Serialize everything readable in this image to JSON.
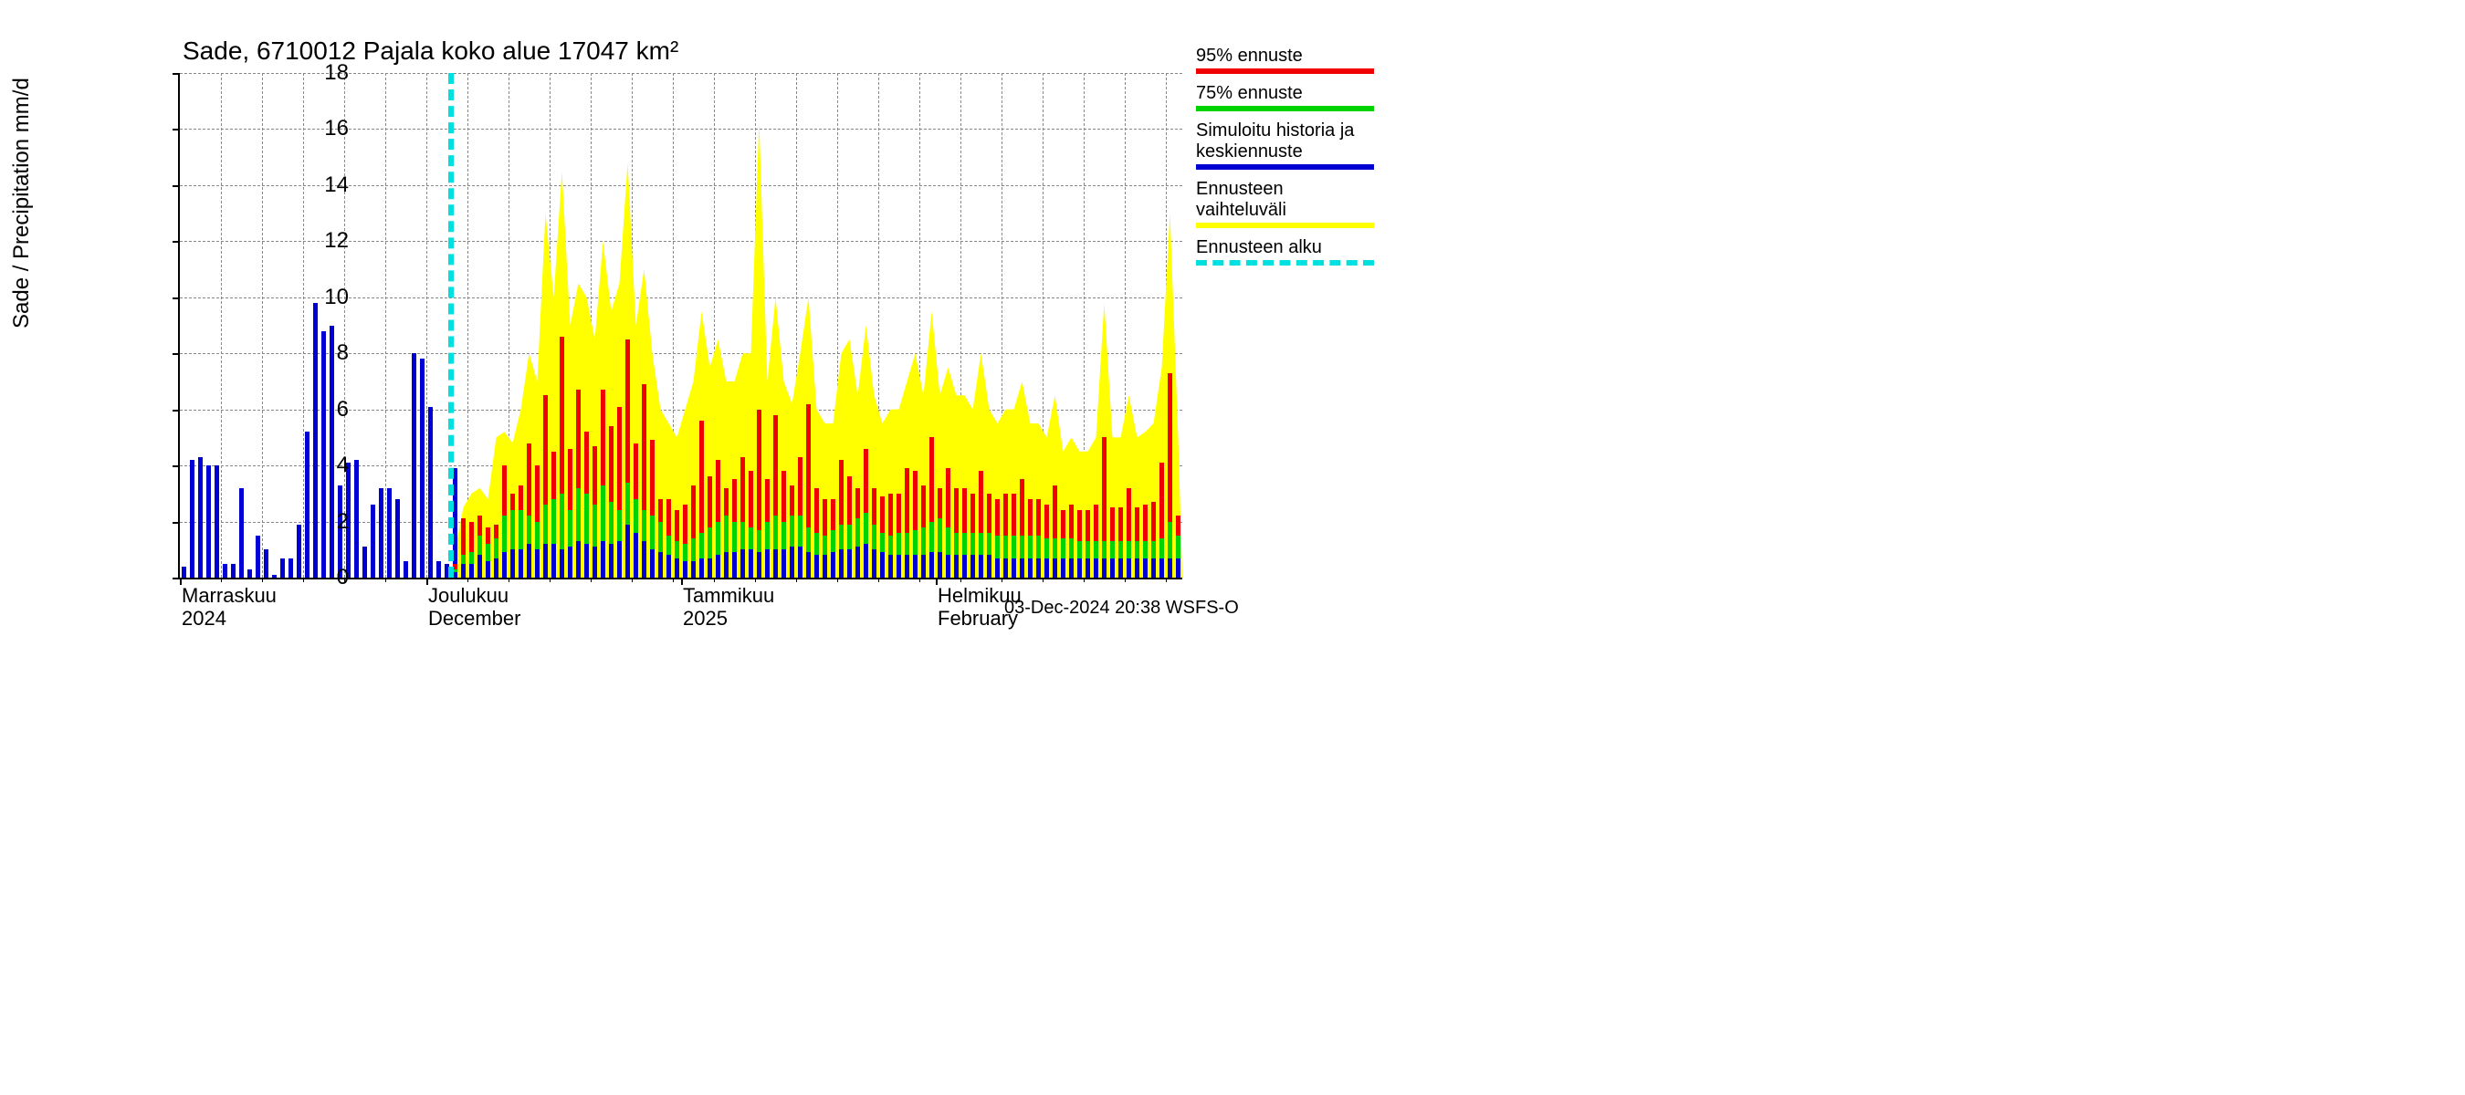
{
  "chart": {
    "title": "Sade, 6710012 Pajala koko alue 17047 km²",
    "ylabel": "Sade / Precipitation   mm/d",
    "footer": "03-Dec-2024 20:38 WSFS-O",
    "background_color": "#ffffff",
    "grid_color": "#888888",
    "axis_color": "#000000",
    "title_fontsize": 28,
    "label_fontsize": 24,
    "tick_fontsize": 24,
    "ylim": [
      0,
      18
    ],
    "ytick_step": 2,
    "yticks": [
      0,
      2,
      4,
      6,
      8,
      10,
      12,
      14,
      16,
      18
    ],
    "n_days": 122,
    "bar_relwidth": 0.55,
    "forecast_start_index": 33,
    "colors": {
      "history": "#0000d3",
      "p75": "#00d300",
      "p95": "#f00000",
      "range": "#ffff00",
      "forecast_line": "#00e0e0"
    },
    "x_major_ticks": [
      {
        "index": 0,
        "line1": "Marraskuu",
        "line2": "2024"
      },
      {
        "index": 30,
        "line1": "Joulukuu",
        "line2": "December"
      },
      {
        "index": 61,
        "line1": "Tammikuu",
        "line2": "2025"
      },
      {
        "index": 92,
        "line1": "Helmikuu",
        "line2": "February"
      }
    ],
    "x_minor_step": 5,
    "legend": [
      {
        "label": "95% ennuste",
        "color": "#f00000",
        "style": "solid"
      },
      {
        "label": "75% ennuste",
        "color": "#00d300",
        "style": "solid"
      },
      {
        "label": "Simuloitu historia ja\nkeskiennuste",
        "color": "#0000d3",
        "style": "solid"
      },
      {
        "label": "Ennusteen vaihteluväli",
        "color": "#ffff00",
        "style": "solid"
      },
      {
        "label": "Ennusteen alku",
        "color": "#00e0e0",
        "style": "dashed"
      }
    ],
    "history": [
      0.4,
      4.2,
      4.3,
      4.0,
      4.0,
      0.5,
      0.5,
      3.2,
      0.3,
      1.5,
      1.0,
      0.1,
      0.7,
      0.7,
      1.9,
      5.2,
      9.8,
      8.8,
      9.0,
      3.3,
      4.1,
      4.2,
      1.1,
      2.6,
      3.2,
      3.2,
      2.8,
      0.6,
      8.0,
      7.8,
      6.1,
      0.6,
      0.5,
      3.9,
      1.2,
      1.2
    ],
    "mean": [
      0.2,
      0.5,
      0.5,
      0.8,
      0.6,
      0.7,
      0.9,
      1.0,
      1.0,
      1.2,
      1.0,
      1.2,
      1.2,
      1.0,
      1.1,
      1.3,
      1.2,
      1.1,
      1.3,
      1.2,
      1.3,
      1.9,
      1.6,
      1.3,
      1.0,
      0.9,
      0.8,
      0.7,
      0.6,
      0.6,
      0.7,
      0.7,
      0.8,
      0.9,
      0.9,
      1.0,
      1.0,
      0.9,
      1.0,
      1.0,
      1.0,
      1.1,
      1.1,
      0.9,
      0.8,
      0.8,
      0.9,
      1.0,
      1.0,
      1.1,
      1.2,
      1.0,
      0.9,
      0.8,
      0.8,
      0.8,
      0.8,
      0.8,
      0.9,
      0.9,
      0.8,
      0.8,
      0.8,
      0.8,
      0.8,
      0.8,
      0.7,
      0.7,
      0.7,
      0.7,
      0.7,
      0.7,
      0.7,
      0.7,
      0.7,
      0.7,
      0.7,
      0.7,
      0.7,
      0.7,
      0.7,
      0.7,
      0.7,
      0.7,
      0.7,
      0.7,
      0.7,
      0.7,
      0.7
    ],
    "p75": [
      0.3,
      0.8,
      0.9,
      1.5,
      1.2,
      1.4,
      2.2,
      2.4,
      2.4,
      2.2,
      2.0,
      2.6,
      2.8,
      3.0,
      2.4,
      3.2,
      3.0,
      2.6,
      3.3,
      2.7,
      2.4,
      3.4,
      2.8,
      2.4,
      2.2,
      2.0,
      1.5,
      1.3,
      1.2,
      1.4,
      1.6,
      1.8,
      2.0,
      2.2,
      2.0,
      2.0,
      1.8,
      1.7,
      2.0,
      2.2,
      2.0,
      2.2,
      2.2,
      1.8,
      1.6,
      1.5,
      1.7,
      1.9,
      1.9,
      2.1,
      2.3,
      1.9,
      1.6,
      1.5,
      1.6,
      1.6,
      1.7,
      1.8,
      2.0,
      2.1,
      1.8,
      1.6,
      1.6,
      1.6,
      1.6,
      1.6,
      1.5,
      1.5,
      1.5,
      1.5,
      1.5,
      1.5,
      1.4,
      1.4,
      1.4,
      1.4,
      1.3,
      1.3,
      1.3,
      1.3,
      1.3,
      1.3,
      1.3,
      1.3,
      1.3,
      1.3,
      1.4,
      2.0,
      1.5
    ],
    "p95": [
      0.5,
      2.1,
      2.0,
      2.2,
      1.8,
      1.9,
      4.0,
      3.0,
      3.3,
      4.8,
      4.0,
      6.5,
      4.5,
      8.6,
      4.6,
      6.7,
      5.2,
      4.7,
      6.7,
      5.4,
      6.1,
      8.5,
      4.8,
      6.9,
      4.9,
      2.8,
      2.8,
      2.4,
      2.6,
      3.3,
      5.6,
      3.6,
      4.2,
      3.2,
      3.5,
      4.3,
      3.8,
      6.0,
      3.5,
      5.8,
      3.8,
      3.3,
      4.3,
      6.2,
      3.2,
      2.8,
      2.8,
      4.2,
      3.6,
      3.2,
      4.6,
      3.2,
      2.9,
      3.0,
      3.0,
      3.9,
      3.8,
      3.3,
      5.0,
      3.2,
      3.9,
      3.2,
      3.2,
      3.0,
      3.8,
      3.0,
      2.8,
      3.0,
      3.0,
      3.5,
      2.8,
      2.8,
      2.6,
      3.3,
      2.4,
      2.6,
      2.4,
      2.4,
      2.6,
      5.0,
      2.5,
      2.5,
      3.2,
      2.5,
      2.6,
      2.7,
      4.1,
      7.3,
      2.2
    ],
    "range_hi": [
      1.0,
      2.5,
      3.0,
      3.2,
      2.8,
      5.0,
      5.2,
      4.8,
      6.0,
      8.0,
      7.0,
      13.0,
      10.0,
      14.5,
      9.0,
      10.5,
      10.0,
      8.5,
      12.0,
      9.5,
      10.5,
      14.8,
      9.0,
      11.0,
      8.0,
      6.0,
      5.5,
      5.0,
      6.0,
      7.0,
      9.5,
      7.5,
      8.5,
      7.0,
      7.0,
      8.0,
      8.0,
      16.3,
      7.0,
      10.0,
      7.0,
      6.2,
      8.0,
      10.0,
      6.0,
      5.5,
      5.5,
      8.0,
      8.5,
      6.5,
      9.0,
      6.5,
      5.5,
      6.0,
      6.0,
      7.0,
      8.0,
      6.5,
      9.5,
      6.5,
      7.5,
      6.5,
      6.5,
      6.0,
      8.0,
      6.0,
      5.5,
      6.0,
      6.0,
      7.0,
      5.5,
      5.5,
      5.0,
      6.5,
      4.5,
      5.0,
      4.5,
      4.5,
      5.0,
      9.8,
      5.0,
      5.0,
      6.5,
      5.0,
      5.2,
      5.5,
      7.5,
      13.0,
      5.0
    ]
  }
}
